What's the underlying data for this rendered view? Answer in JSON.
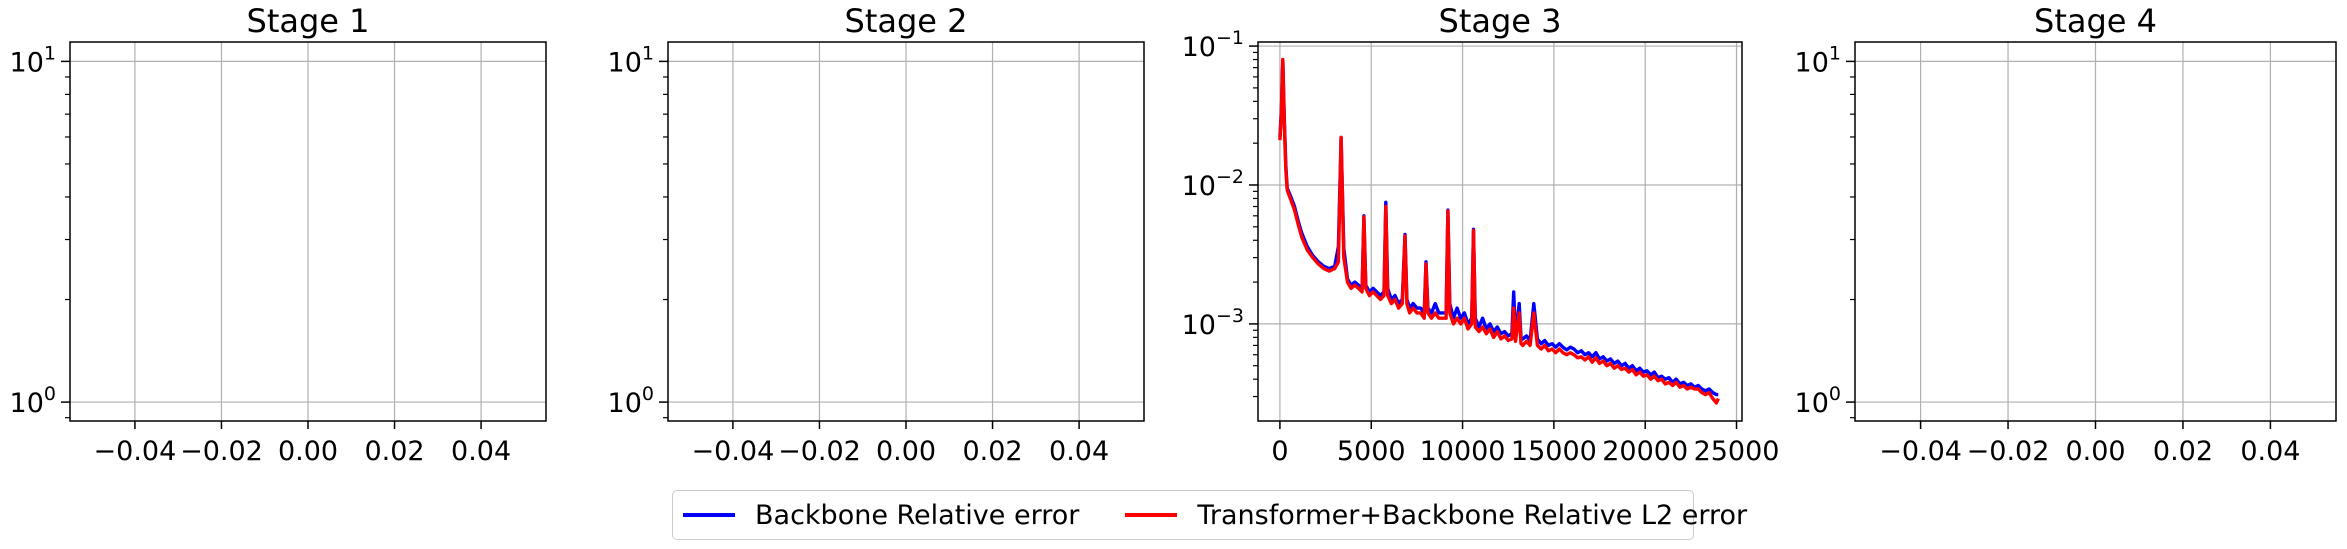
{
  "colors": {
    "backbone": "#0000ff",
    "transformer": "#ff0000",
    "grid": "#b0b0b0",
    "axis": "#000000"
  },
  "chart_data": [
    {
      "type": "line",
      "title": "Stage 1",
      "yscale": "log",
      "xlim": [
        -0.055,
        0.055
      ],
      "ylim": [
        0.88,
        11.4
      ],
      "xticks": [
        -0.04,
        -0.02,
        0.0,
        0.02,
        0.04
      ],
      "xtick_labels": [
        "−0.04",
        "−0.02",
        "0.00",
        "0.02",
        "0.04"
      ],
      "yticks": [
        1,
        10
      ],
      "grid": true,
      "series": []
    },
    {
      "type": "line",
      "title": "Stage 2",
      "yscale": "log",
      "xlim": [
        -0.055,
        0.055
      ],
      "ylim": [
        0.88,
        11.4
      ],
      "xticks": [
        -0.04,
        -0.02,
        0.0,
        0.02,
        0.04
      ],
      "xtick_labels": [
        "−0.04",
        "−0.02",
        "0.00",
        "0.02",
        "0.04"
      ],
      "yticks": [
        1,
        10
      ],
      "grid": true,
      "series": []
    },
    {
      "type": "line",
      "title": "Stage 3",
      "yscale": "log",
      "xlim": [
        -1200,
        25300
      ],
      "ylim": [
        0.0002,
        0.107
      ],
      "xticks": [
        0,
        5000,
        10000,
        15000,
        20000,
        25000
      ],
      "xtick_labels": [
        "0",
        "5000",
        "10000",
        "15000",
        "20000",
        "25000"
      ],
      "yticks": [
        0.001,
        0.01,
        0.1
      ],
      "grid": true,
      "series": [
        {
          "name": "Backbone Relative error",
          "color": "#0000ff",
          "x": [
            0,
            80,
            160,
            240,
            320,
            400,
            600,
            800,
            1000,
            1200,
            1500,
            1800,
            2100,
            2400,
            2700,
            3000,
            3200,
            3350,
            3500,
            3700,
            3900,
            4100,
            4300,
            4500,
            4600,
            4700,
            4900,
            5100,
            5300,
            5500,
            5700,
            5800,
            5900,
            6100,
            6300,
            6500,
            6700,
            6850,
            6950,
            7100,
            7300,
            7500,
            7700,
            7900,
            8000,
            8100,
            8300,
            8500,
            8700,
            8900,
            9100,
            9200,
            9300,
            9500,
            9700,
            9900,
            10100,
            10300,
            10500,
            10600,
            10700,
            10900,
            11100,
            11300,
            11500,
            11700,
            11900,
            12100,
            12300,
            12500,
            12700,
            12800,
            12900,
            13100,
            13200,
            13300,
            13500,
            13700,
            13900,
            14100,
            14300,
            14500,
            14700,
            14900,
            15100,
            15300,
            15500,
            15700,
            15900,
            16100,
            16300,
            16500,
            16700,
            16900,
            17100,
            17300,
            17500,
            17700,
            17900,
            18100,
            18300,
            18500,
            18700,
            18900,
            19100,
            19300,
            19500,
            19700,
            19900,
            20100,
            20300,
            20500,
            20700,
            20900,
            21100,
            21300,
            21500,
            21700,
            21900,
            22100,
            22300,
            22500,
            22700,
            22900,
            23100,
            23300,
            23500,
            23700,
            23900,
            24000
          ],
          "values": [
            0.022,
            0.035,
            0.079,
            0.03,
            0.014,
            0.0095,
            0.0082,
            0.007,
            0.0055,
            0.0045,
            0.0036,
            0.0031,
            0.0028,
            0.0026,
            0.0025,
            0.0026,
            0.0036,
            0.022,
            0.0035,
            0.0021,
            0.0019,
            0.002,
            0.0019,
            0.0018,
            0.006,
            0.0019,
            0.0017,
            0.0018,
            0.0017,
            0.0016,
            0.0017,
            0.0075,
            0.0018,
            0.0015,
            0.0016,
            0.0014,
            0.0015,
            0.0044,
            0.0015,
            0.0013,
            0.0014,
            0.0013,
            0.0013,
            0.0012,
            0.0028,
            0.0013,
            0.0012,
            0.0014,
            0.0012,
            0.0012,
            0.0012,
            0.0066,
            0.0014,
            0.0011,
            0.0013,
            0.0011,
            0.0012,
            0.001,
            0.0011,
            0.0048,
            0.0011,
            0.00095,
            0.0011,
            0.00092,
            0.001,
            0.00088,
            0.00095,
            0.00085,
            0.00088,
            0.00082,
            0.00085,
            0.0017,
            0.0008,
            0.0014,
            0.0008,
            0.00078,
            0.00082,
            0.00076,
            0.0014,
            0.00078,
            0.00072,
            0.00076,
            0.0007,
            0.00072,
            0.00068,
            0.00072,
            0.00068,
            0.00065,
            0.00068,
            0.00066,
            0.00062,
            0.00064,
            0.0006,
            0.00062,
            0.00058,
            0.00062,
            0.00056,
            0.00058,
            0.00054,
            0.00056,
            0.00052,
            0.00054,
            0.0005,
            0.00052,
            0.00048,
            0.0005,
            0.00046,
            0.00048,
            0.00045,
            0.00046,
            0.00043,
            0.00045,
            0.00041,
            0.00042,
            0.0004,
            0.00041,
            0.00038,
            0.0004,
            0.00037,
            0.00038,
            0.00036,
            0.00037,
            0.00035,
            0.00036,
            0.00034,
            0.00033,
            0.00034,
            0.00032,
            0.00031,
            0.00031
          ]
        },
        {
          "name": "Transformer+Backbone Relative L2 error",
          "color": "#ff0000",
          "x": [
            0,
            80,
            160,
            240,
            320,
            400,
            600,
            800,
            1000,
            1200,
            1500,
            1800,
            2100,
            2400,
            2700,
            3000,
            3200,
            3350,
            3500,
            3700,
            3900,
            4100,
            4300,
            4500,
            4600,
            4700,
            4900,
            5100,
            5300,
            5500,
            5700,
            5800,
            5900,
            6100,
            6300,
            6500,
            6700,
            6850,
            6950,
            7100,
            7300,
            7500,
            7700,
            7900,
            8000,
            8100,
            8300,
            8500,
            8700,
            8900,
            9100,
            9200,
            9300,
            9500,
            9700,
            9900,
            10100,
            10300,
            10500,
            10600,
            10700,
            10900,
            11100,
            11300,
            11500,
            11700,
            11900,
            12100,
            12300,
            12500,
            12700,
            12800,
            12900,
            13100,
            13200,
            13300,
            13500,
            13700,
            13900,
            14100,
            14300,
            14500,
            14700,
            14900,
            15100,
            15300,
            15500,
            15700,
            15900,
            16100,
            16300,
            16500,
            16700,
            16900,
            17100,
            17300,
            17500,
            17700,
            17900,
            18100,
            18300,
            18500,
            18700,
            18900,
            19100,
            19300,
            19500,
            19700,
            19900,
            20100,
            20300,
            20500,
            20700,
            20900,
            21100,
            21300,
            21500,
            21700,
            21900,
            22100,
            22300,
            22500,
            22700,
            22900,
            23100,
            23300,
            23500,
            23700,
            23900,
            24000
          ],
          "values": [
            0.021,
            0.033,
            0.08,
            0.028,
            0.013,
            0.0092,
            0.0078,
            0.0066,
            0.0052,
            0.0042,
            0.0034,
            0.003,
            0.0027,
            0.0025,
            0.0024,
            0.0025,
            0.0028,
            0.022,
            0.003,
            0.002,
            0.0018,
            0.0019,
            0.0018,
            0.0017,
            0.0059,
            0.0018,
            0.0016,
            0.0017,
            0.0016,
            0.0015,
            0.0016,
            0.007,
            0.0016,
            0.0014,
            0.0015,
            0.0013,
            0.0014,
            0.0043,
            0.0014,
            0.0012,
            0.0013,
            0.0012,
            0.0012,
            0.0011,
            0.0027,
            0.0012,
            0.0011,
            0.0012,
            0.0011,
            0.0011,
            0.0011,
            0.0065,
            0.0012,
            0.001,
            0.0011,
            0.001,
            0.0011,
            0.00092,
            0.001,
            0.0047,
            0.00095,
            0.00088,
            0.00095,
            0.00085,
            0.00092,
            0.0008,
            0.00088,
            0.00078,
            0.00082,
            0.00076,
            0.00078,
            0.0013,
            0.00075,
            0.0012,
            0.00072,
            0.0007,
            0.00075,
            0.0007,
            0.0012,
            0.0007,
            0.00066,
            0.0007,
            0.00064,
            0.00066,
            0.00062,
            0.00066,
            0.00062,
            0.0006,
            0.00062,
            0.0006,
            0.00057,
            0.00058,
            0.00055,
            0.00058,
            0.00053,
            0.00057,
            0.00052,
            0.00054,
            0.0005,
            0.00052,
            0.00048,
            0.0005,
            0.00047,
            0.00048,
            0.00045,
            0.00047,
            0.00043,
            0.00045,
            0.00042,
            0.00043,
            0.0004,
            0.00042,
            0.00039,
            0.0004,
            0.00037,
            0.00038,
            0.00036,
            0.00038,
            0.00035,
            0.00036,
            0.00034,
            0.00035,
            0.00034,
            0.00034,
            0.00032,
            0.00031,
            0.00032,
            0.00029,
            0.00027,
            0.00029
          ]
        }
      ]
    },
    {
      "type": "line",
      "title": "Stage 4",
      "yscale": "log",
      "xlim": [
        -0.055,
        0.055
      ],
      "ylim": [
        0.88,
        11.4
      ],
      "xticks": [
        -0.04,
        -0.02,
        0.0,
        0.02,
        0.04
      ],
      "xtick_labels": [
        "−0.04",
        "−0.02",
        "0.00",
        "0.02",
        "0.04"
      ],
      "yticks": [
        1,
        10
      ],
      "grid": true,
      "series": []
    }
  ],
  "legend": {
    "placement": "bottom-center",
    "items": [
      {
        "label": "Backbone Relative error",
        "color": "#0000ff"
      },
      {
        "label": "Transformer+Backbone Relative L2 error",
        "color": "#ff0000"
      }
    ]
  }
}
